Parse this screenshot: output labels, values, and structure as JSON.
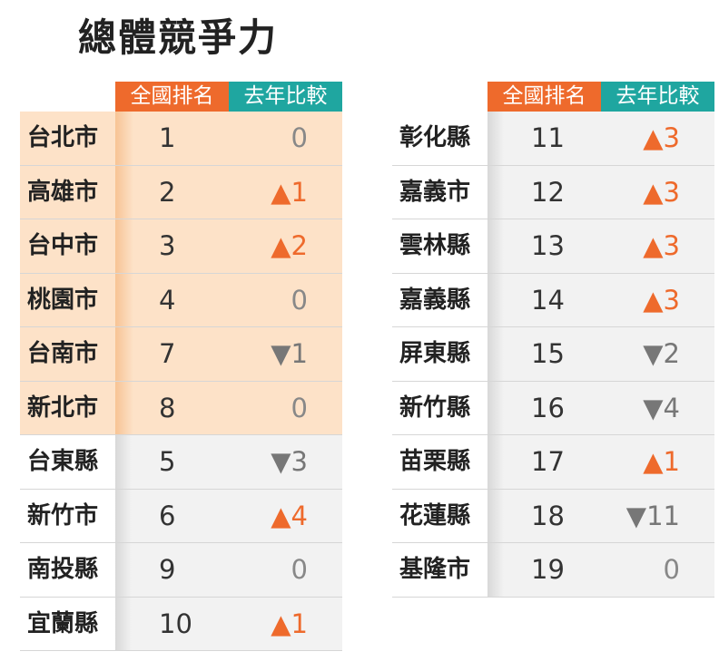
{
  "title": "總體競爭力",
  "headers": {
    "rank": "全國排名",
    "change": "去年比較"
  },
  "colors": {
    "rank_header": "#ee6a2c",
    "change_header": "#1fa6a0",
    "highlight": "#fde2c8",
    "up": "#ee6a2c",
    "down": "#777777"
  },
  "left": [
    {
      "name": "台北市",
      "rank": "1",
      "change": "0",
      "hl": true
    },
    {
      "name": "高雄市",
      "rank": "2",
      "change": "▲1",
      "hl": true
    },
    {
      "name": "台中市",
      "rank": "3",
      "change": "▲2",
      "hl": true
    },
    {
      "name": "桃園市",
      "rank": "4",
      "change": "0",
      "hl": true
    },
    {
      "name": "台南市",
      "rank": "7",
      "change": "▼1",
      "hl": true
    },
    {
      "name": "新北市",
      "rank": "8",
      "change": "0",
      "hl": true
    },
    {
      "name": "台東縣",
      "rank": "5",
      "change": "▼3",
      "hl": false
    },
    {
      "name": "新竹市",
      "rank": "6",
      "change": "▲4",
      "hl": false
    },
    {
      "name": "南投縣",
      "rank": "9",
      "change": "0",
      "hl": false
    },
    {
      "name": "宜蘭縣",
      "rank": "10",
      "change": "▲1",
      "hl": false
    }
  ],
  "right": [
    {
      "name": "彰化縣",
      "rank": "11",
      "change": "▲3",
      "hl": false
    },
    {
      "name": "嘉義市",
      "rank": "12",
      "change": "▲3",
      "hl": false
    },
    {
      "name": "雲林縣",
      "rank": "13",
      "change": "▲3",
      "hl": false
    },
    {
      "name": "嘉義縣",
      "rank": "14",
      "change": "▲3",
      "hl": false
    },
    {
      "name": "屏東縣",
      "rank": "15",
      "change": "▼2",
      "hl": false
    },
    {
      "name": "新竹縣",
      "rank": "16",
      "change": "▼4",
      "hl": false
    },
    {
      "name": "苗栗縣",
      "rank": "17",
      "change": "▲1",
      "hl": false
    },
    {
      "name": "花蓮縣",
      "rank": "18",
      "change": "▼11",
      "hl": false
    },
    {
      "name": "基隆市",
      "rank": "19",
      "change": "0",
      "hl": false
    }
  ]
}
